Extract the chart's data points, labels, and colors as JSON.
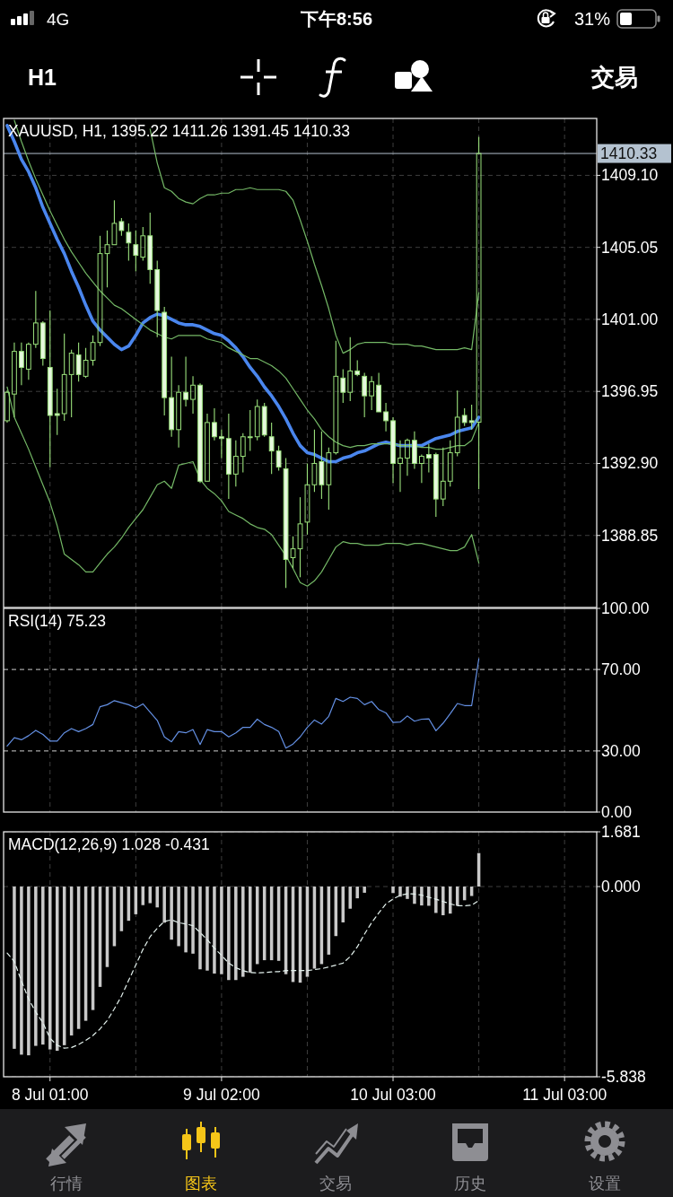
{
  "chart_data": [
    {
      "type": "candlestick",
      "title": "XAUUSD, H1, 1395.22 1411.26 1391.45 1410.33",
      "categories": [
        null,
        null,
        null,
        null,
        null,
        null,
        null,
        null,
        null,
        null,
        null,
        null,
        null,
        null,
        null,
        null,
        null,
        null,
        null,
        null,
        null,
        null,
        null,
        null,
        null,
        null,
        null,
        null,
        null,
        null,
        null,
        null,
        null,
        null,
        null,
        null,
        null,
        null,
        null,
        null,
        null,
        null,
        null,
        null,
        null,
        null,
        null,
        null,
        null,
        null,
        null,
        null,
        null,
        null,
        null,
        null,
        null,
        null,
        null,
        null,
        null,
        null,
        null,
        null,
        null,
        null,
        null,
        null,
        null,
        null,
        null,
        null,
        null,
        null,
        null,
        null,
        null,
        null,
        null,
        null,
        null,
        null,
        null
      ],
      "color": "#9be27c",
      "ohlc": [
        [
          1395.3,
          1397.0,
          1395.2,
          1396.9
        ],
        [
          1396.8,
          1399.7,
          1395.5,
          1399.2
        ],
        [
          1399.2,
          1399.7,
          1397.3,
          1398.3
        ],
        [
          1398.2,
          1399.7,
          1397.6,
          1399.6
        ],
        [
          1399.6,
          1402.6,
          1399.4,
          1400.8
        ],
        [
          1400.8,
          1400.9,
          1398.4,
          1398.8
        ],
        [
          1398.3,
          1401.5,
          1392.7,
          1395.6
        ],
        [
          1395.7,
          1397.1,
          1394.5,
          1395.6
        ],
        [
          1395.7,
          1400.2,
          1395.3,
          1397.9
        ],
        [
          1397.9,
          1399.3,
          1395.5,
          1399.1
        ],
        [
          1399.0,
          1399.7,
          1397.5,
          1397.9
        ],
        [
          1397.8,
          1399.4,
          1397.7,
          1398.7
        ],
        [
          1398.7,
          1400.1,
          1398.4,
          1399.7
        ],
        [
          1399.7,
          1405.7,
          1399.5,
          1404.7
        ],
        [
          1404.7,
          1406.0,
          1402.8,
          1405.2
        ],
        [
          1405.2,
          1407.7,
          1405.2,
          1406.4
        ],
        [
          1406.5,
          1406.7,
          1405.7,
          1406.0
        ],
        [
          1405.9,
          1406.4,
          1404.3,
          1405.3
        ],
        [
          1405.2,
          1406.0,
          1403.7,
          1404.6
        ],
        [
          1404.5,
          1406.2,
          1404.3,
          1405.7
        ],
        [
          1405.7,
          1407.0,
          1403.0,
          1403.8
        ],
        [
          1403.8,
          1404.3,
          1400.0,
          1401.5
        ],
        [
          1401.4,
          1401.7,
          1395.6,
          1396.6
        ],
        [
          1396.6,
          1398.9,
          1394.4,
          1394.8
        ],
        [
          1394.8,
          1397.3,
          1393.8,
          1396.9
        ],
        [
          1396.9,
          1398.9,
          1396.1,
          1396.5
        ],
        [
          1396.5,
          1397.8,
          1395.7,
          1397.3
        ],
        [
          1397.3,
          1397.4,
          1391.8,
          1391.9
        ],
        [
          1391.9,
          1395.7,
          1391.9,
          1395.2
        ],
        [
          1395.2,
          1396.0,
          1394.2,
          1394.4
        ],
        [
          1394.4,
          1394.8,
          1393.2,
          1394.3
        ],
        [
          1394.3,
          1395.7,
          1390.9,
          1392.3
        ],
        [
          1392.3,
          1394.2,
          1391.6,
          1393.3
        ],
        [
          1393.3,
          1394.6,
          1392.4,
          1394.4
        ],
        [
          1394.4,
          1395.9,
          1393.6,
          1394.4
        ],
        [
          1394.4,
          1396.5,
          1394.2,
          1396.1
        ],
        [
          1396.1,
          1396.3,
          1394.4,
          1394.5
        ],
        [
          1394.4,
          1395.2,
          1392.3,
          1393.6
        ],
        [
          1393.6,
          1393.9,
          1392.5,
          1392.7
        ],
        [
          1392.6,
          1393.2,
          1385.9,
          1387.5
        ],
        [
          1387.6,
          1388.8,
          1387.0,
          1388.1
        ],
        [
          1388.1,
          1391.0,
          1386.5,
          1389.5
        ],
        [
          1389.6,
          1392.9,
          1388.9,
          1391.7
        ],
        [
          1391.7,
          1394.8,
          1391.3,
          1392.9
        ],
        [
          1393.0,
          1394.7,
          1390.9,
          1391.7
        ],
        [
          1391.7,
          1393.8,
          1390.3,
          1393.5
        ],
        [
          1393.5,
          1399.8,
          1393.4,
          1397.8
        ],
        [
          1397.7,
          1398.2,
          1396.3,
          1396.9
        ],
        [
          1396.9,
          1400.0,
          1396.4,
          1398.1
        ],
        [
          1398.1,
          1398.7,
          1397.8,
          1397.9
        ],
        [
          1397.8,
          1398.0,
          1395.5,
          1396.7
        ],
        [
          1396.7,
          1397.8,
          1395.9,
          1397.5
        ],
        [
          1397.3,
          1398.0,
          1395.8,
          1395.8
        ],
        [
          1395.8,
          1396.3,
          1394.7,
          1395.3
        ],
        [
          1395.3,
          1395.5,
          1391.8,
          1392.9
        ],
        [
          1392.9,
          1394.2,
          1391.3,
          1393.2
        ],
        [
          1393.2,
          1394.3,
          1392.2,
          1394.2
        ],
        [
          1394.2,
          1394.7,
          1392.6,
          1392.9
        ],
        [
          1392.9,
          1393.4,
          1391.8,
          1393.3
        ],
        [
          1393.4,
          1394.0,
          1392.4,
          1393.2
        ],
        [
          1393.4,
          1393.5,
          1389.9,
          1390.9
        ],
        [
          1390.9,
          1393.8,
          1390.5,
          1391.9
        ],
        [
          1391.9,
          1394.2,
          1391.6,
          1393.5
        ],
        [
          1393.5,
          1397.0,
          1393.3,
          1395.5
        ],
        [
          1395.6,
          1396.0,
          1395.0,
          1395.2
        ],
        [
          1395.3,
          1396.2,
          1394.8,
          1395.2
        ],
        [
          1395.22,
          1411.26,
          1391.45,
          1410.33
        ],
        null,
        null,
        null,
        null,
        null,
        null,
        null,
        null,
        null,
        null,
        null,
        null,
        null,
        null,
        null,
        null
      ],
      "series": [
        {
          "type": "line",
          "color": "#4a86ee",
          "values": [
            1411.9,
            1411.0,
            1410.0,
            1409.3,
            1408.4,
            1407.3,
            1406.4,
            1405.5,
            1404.7,
            1403.7,
            1402.8,
            1401.8,
            1400.9,
            1400.4,
            1400.0,
            1399.6,
            1399.3,
            1399.5,
            1400.1,
            1400.8,
            1401.1,
            1401.3,
            1401.2,
            1401.0,
            1400.8,
            1400.7,
            1400.7,
            1400.6,
            1400.4,
            1400.2,
            1400.1,
            1399.8,
            1399.4,
            1398.9,
            1398.3,
            1397.8,
            1397.2,
            1396.7,
            1396.1,
            1395.4,
            1394.6,
            1393.9,
            1393.5,
            1393.4,
            1393.2,
            1393.0,
            1393.0,
            1393.2,
            1393.3,
            1393.5,
            1393.6,
            1393.8,
            1394.0,
            1394.1,
            1394.0,
            1393.9,
            1393.9,
            1393.9,
            1393.9,
            1394.1,
            1394.3,
            1394.4,
            1394.5,
            1394.7,
            1394.8,
            1394.9,
            1395.5,
            null,
            null,
            null,
            null,
            null,
            null,
            null,
            null,
            null,
            null,
            null,
            null,
            null,
            null,
            null,
            null
          ]
        },
        {
          "type": "line",
          "color": "#74b866",
          "values": [
            null,
            null,
            null,
            null,
            null,
            null,
            null,
            null,
            null,
            null,
            null,
            null,
            null,
            null,
            null,
            null,
            null,
            null,
            null,
            null,
            1411.7,
            1409.8,
            1408.4,
            1408.2,
            1407.8,
            1407.6,
            1407.5,
            1407.8,
            1408.0,
            1408.0,
            1408.1,
            1408.1,
            1408.3,
            1408.3,
            1408.4,
            1408.3,
            1408.3,
            1408.3,
            1408.3,
            1408.2,
            1407.7,
            1406.6,
            1405.4,
            1404.1,
            1402.9,
            1401.6,
            1400.1,
            1399.1,
            1399.3,
            1399.6,
            1399.7,
            1399.7,
            1399.7,
            1399.7,
            1399.6,
            1399.6,
            1399.6,
            1399.5,
            1399.5,
            1399.4,
            1399.3,
            1399.3,
            1399.3,
            1399.3,
            1399.4,
            1399.3,
            1402.5,
            null,
            null,
            null,
            null,
            null,
            null,
            null,
            null,
            null,
            null,
            null,
            null,
            null,
            null,
            null,
            null
          ]
        },
        {
          "type": "line",
          "color": "#74b866",
          "values": [
            null,
            1412.2,
            1411.0,
            1409.9,
            1408.9,
            1408.0,
            1407.1,
            1406.3,
            1405.5,
            1404.8,
            1404.2,
            1403.6,
            1403.1,
            1402.6,
            1402.2,
            1401.8,
            1401.6,
            1401.3,
            1401.0,
            1400.7,
            1400.4,
            1400.2,
            1400.0,
            1399.9,
            1400.1,
            1400.1,
            1400.1,
            1400.1,
            1399.9,
            1399.8,
            1399.7,
            1399.4,
            1399.2,
            1399.0,
            1398.8,
            1398.8,
            1398.6,
            1398.4,
            1398.1,
            1397.7,
            1397.1,
            1396.5,
            1395.9,
            1395.4,
            1394.8,
            1394.4,
            1394.1,
            1393.9,
            1393.8,
            1393.9,
            1393.9,
            1394.0,
            1394.0,
            1394.0,
            1394.0,
            1393.9,
            1393.9,
            1393.9,
            1393.8,
            1393.8,
            1393.7,
            1393.7,
            1393.8,
            1393.9,
            1393.9,
            1394.2,
            1395.2,
            null,
            null,
            null,
            null,
            null,
            null,
            null,
            null,
            null,
            null,
            null,
            null,
            null,
            null,
            null,
            null
          ]
        },
        {
          "type": "line",
          "color": "#74b866",
          "values": [
            1397.2,
            1395.5,
            1394.6,
            1393.7,
            1392.7,
            1391.7,
            1390.7,
            1389.4,
            1387.8,
            1387.5,
            1387.2,
            1386.8,
            1386.8,
            1387.3,
            1387.8,
            1388.2,
            1388.7,
            1389.3,
            1389.8,
            1390.3,
            1391.0,
            1391.7,
            1391.9,
            1391.5,
            1392.8,
            1392.9,
            1393.0,
            1392.0,
            1391.5,
            1391.2,
            1390.8,
            1390.2,
            1390.0,
            1389.8,
            1389.5,
            1389.3,
            1389.2,
            1388.9,
            1388.3,
            1387.7,
            1387.0,
            1386.2,
            1386.0,
            1386.3,
            1386.8,
            1387.5,
            1388.2,
            1388.5,
            1388.4,
            1388.4,
            1388.3,
            1388.3,
            1388.3,
            1388.4,
            1388.4,
            1388.4,
            1388.3,
            1388.4,
            1388.4,
            1388.3,
            1388.2,
            1388.1,
            1388.0,
            1388.0,
            1388.2,
            1388.9,
            1387.3,
            null,
            null,
            null,
            null,
            null,
            null,
            null,
            null,
            null,
            null,
            null,
            null,
            null,
            null,
            null,
            null
          ]
        }
      ],
      "ylim": [
        1384.8,
        1412.3
      ],
      "yticks": [
        {
          "value": 1409.1,
          "label": "1409.10"
        },
        1405.05,
        {
          "value": 1401.0,
          "label": "1401.00"
        },
        1396.95,
        {
          "value": 1392.9,
          "label": "1392.90"
        },
        1388.85
      ],
      "ref_lines": [
        {
          "axis": "y",
          "value": 1410.33,
          "label": "1410.33",
          "color": "#b4c2d0"
        }
      ],
      "grid": true,
      "tick_labels": "y",
      "annotations": [
        "4G",
        "下午8:56",
        "31%",
        "H1",
        "交易",
        "行情",
        "图表",
        "交易",
        "历史",
        "设置"
      ]
    },
    {
      "type": "line",
      "title": "RSI(14) 75.23",
      "categories": [
        null,
        null,
        null,
        null,
        null,
        null,
        null,
        null,
        null,
        null,
        null,
        null,
        null,
        null,
        null,
        null,
        null,
        null,
        null,
        null,
        null,
        null,
        null,
        null,
        null,
        null,
        null,
        null,
        null,
        null,
        null,
        null,
        null,
        null,
        null,
        null,
        null,
        null,
        null,
        null,
        null,
        null,
        null,
        null,
        null,
        null,
        null,
        null,
        null,
        null,
        null,
        null,
        null,
        null,
        null,
        null,
        null,
        null,
        null,
        null,
        null,
        null,
        null,
        null,
        null,
        null,
        null,
        null,
        null,
        null,
        null,
        null,
        null,
        null,
        null,
        null,
        null,
        null,
        null,
        null,
        null,
        null,
        null
      ],
      "series": [
        {
          "color": "#6490e4",
          "values": [
            32.4,
            36.5,
            35.5,
            37.5,
            40.1,
            38.1,
            34.9,
            34.9,
            38.9,
            41.0,
            39.5,
            41.0,
            43.0,
            51.7,
            52.7,
            54.7,
            53.7,
            52.7,
            51.1,
            53.1,
            49.1,
            45.0,
            36.9,
            34.5,
            39.5,
            38.9,
            40.5,
            33.2,
            40.5,
            39.5,
            39.5,
            36.9,
            38.9,
            41.6,
            41.6,
            45.6,
            43.0,
            41.6,
            39.5,
            31.4,
            33.4,
            36.9,
            41.6,
            45.2,
            43.2,
            47.0,
            55.8,
            54.3,
            56.4,
            55.8,
            52.7,
            54.3,
            50.3,
            48.7,
            44.0,
            44.2,
            47.2,
            44.6,
            45.6,
            45.8,
            39.9,
            43.6,
            48.3,
            53.3,
            52.3,
            52.3,
            75.23,
            null,
            null,
            null,
            null,
            null,
            null,
            null,
            null,
            null,
            null,
            null,
            null,
            null,
            null,
            null,
            null
          ]
        }
      ],
      "ylim": [
        0,
        100
      ],
      "yticks": [
        {
          "value": 100,
          "label": "100.00"
        },
        {
          "value": 70,
          "label": "70.00"
        },
        {
          "value": 30,
          "label": "30.00"
        },
        {
          "value": 0,
          "label": "0.00"
        }
      ],
      "ref_lines": [
        {
          "axis": "y",
          "value": 70,
          "line_style": "dashed",
          "color": "#cfcfcf"
        },
        {
          "axis": "y",
          "value": 30,
          "line_style": "dashed",
          "color": "#cfcfcf"
        }
      ],
      "grid": "x",
      "tick_labels": "y"
    },
    {
      "type": "bar",
      "title": "MACD(12,26,9) 1.028 -0.431",
      "categories": [
        null,
        null,
        null,
        null,
        null,
        null,
        "8 Jul 01:00",
        null,
        null,
        null,
        null,
        null,
        null,
        null,
        null,
        null,
        null,
        null,
        null,
        null,
        null,
        null,
        null,
        null,
        null,
        null,
        null,
        null,
        null,
        null,
        "9 Jul 02:00",
        null,
        null,
        null,
        null,
        null,
        null,
        null,
        null,
        null,
        null,
        null,
        null,
        null,
        null,
        null,
        null,
        null,
        null,
        null,
        null,
        null,
        null,
        null,
        "10 Jul 03:00",
        null,
        null,
        null,
        null,
        null,
        null,
        null,
        null,
        null,
        null,
        null,
        null,
        null,
        null,
        null,
        null,
        null,
        null,
        null,
        null,
        null,
        null,
        null,
        "11 Jul 03:00",
        null,
        null,
        null,
        null
      ],
      "series": [
        {
          "color": "#c9c9c9",
          "values": [
            null,
            -4.98,
            -5.16,
            -5.18,
            -4.89,
            -4.85,
            -5.0,
            -5.04,
            -4.87,
            -4.57,
            -4.37,
            -4.12,
            -3.79,
            -3.08,
            -2.47,
            -1.83,
            -1.37,
            -1.05,
            -0.85,
            -0.57,
            -0.51,
            -0.64,
            -1.11,
            -1.63,
            -1.83,
            -2.02,
            -2.06,
            -2.54,
            -2.58,
            -2.67,
            -2.69,
            -2.87,
            -2.87,
            -2.77,
            -2.64,
            -2.38,
            -2.26,
            -2.26,
            -2.28,
            -2.69,
            -2.93,
            -2.95,
            -2.77,
            -2.52,
            -2.38,
            -2.09,
            -1.52,
            -1.1,
            -0.68,
            -0.36,
            -0.19,
            0,
            0,
            0,
            -0.2,
            -0.31,
            -0.38,
            -0.53,
            -0.58,
            -0.59,
            -0.81,
            -0.88,
            -0.83,
            -0.59,
            -0.42,
            -0.29,
            1.028,
            null,
            null,
            null,
            null,
            null,
            null,
            null,
            null,
            null,
            null,
            null,
            null,
            null,
            null,
            null,
            null
          ]
        },
        {
          "type": "line",
          "color": "#e4f2ee",
          "line_style": "dashed",
          "values": [
            -2.04,
            -2.3,
            -2.9,
            -3.45,
            -3.85,
            -4.18,
            -4.66,
            -4.87,
            -4.96,
            -4.94,
            -4.85,
            -4.72,
            -4.57,
            -4.37,
            -4.11,
            -3.75,
            -3.36,
            -2.88,
            -2.41,
            -1.93,
            -1.54,
            -1.28,
            -1.07,
            -1.02,
            -1.11,
            -1.15,
            -1.2,
            -1.41,
            -1.63,
            -1.89,
            -2.11,
            -2.35,
            -2.49,
            -2.58,
            -2.64,
            -2.65,
            -2.64,
            -2.62,
            -2.61,
            -2.58,
            -2.58,
            -2.58,
            -2.58,
            -2.55,
            -2.52,
            -2.47,
            -2.41,
            -2.35,
            -2.15,
            -1.85,
            -1.46,
            -1.11,
            -0.81,
            -0.53,
            -0.38,
            -0.27,
            -0.22,
            -0.23,
            -0.26,
            -0.33,
            -0.39,
            -0.46,
            -0.53,
            -0.59,
            -0.59,
            -0.57,
            -0.431,
            null,
            null,
            null,
            null,
            null,
            null,
            null,
            null,
            null,
            null,
            null,
            null,
            null,
            null,
            null,
            null
          ]
        }
      ],
      "ylim": [
        -5.838,
        1.681
      ],
      "yticks": [
        1.681,
        {
          "value": 0,
          "label": "0.000"
        },
        -5.838
      ],
      "grid": true
    }
  ]
}
